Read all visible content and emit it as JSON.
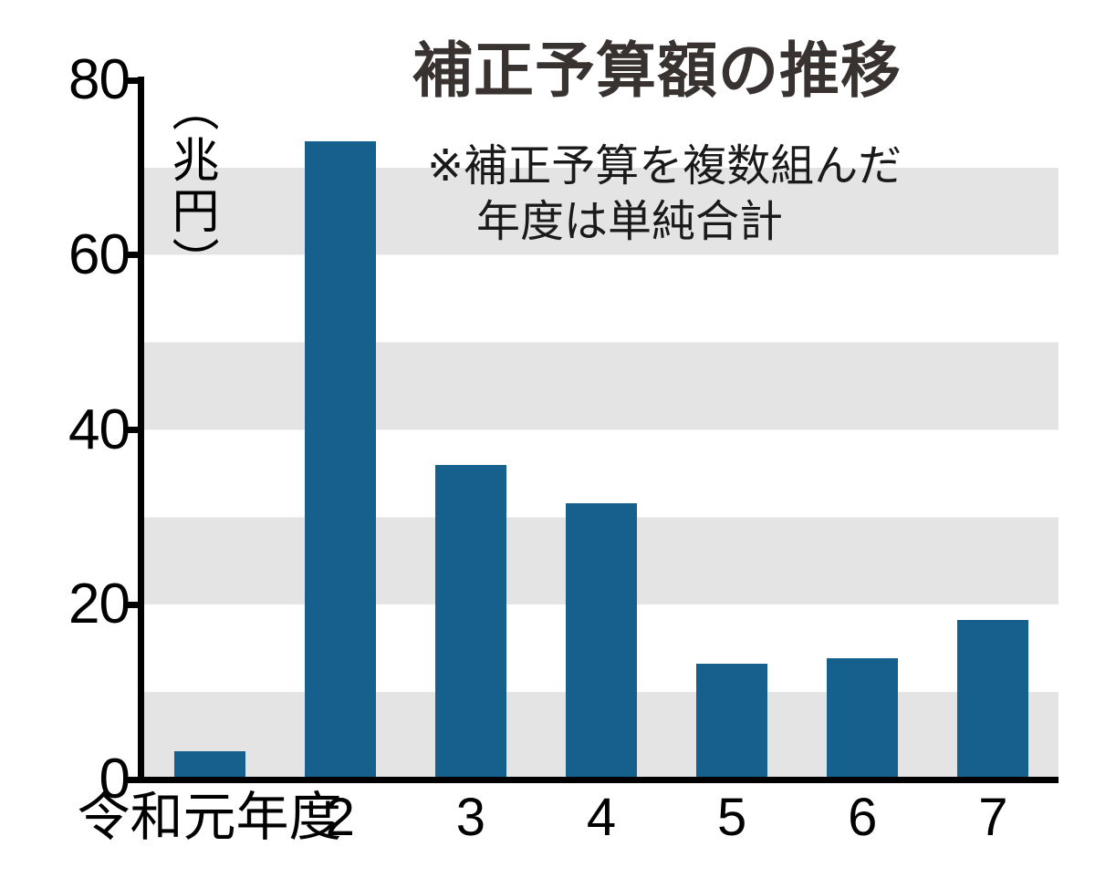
{
  "chart_data": {
    "type": "bar",
    "title": "補正予算額の推移",
    "note_line1": "※補正予算を複数組んだ",
    "note_line2": "年度は単純合計",
    "unit_label": "（兆円）",
    "xlabel": "",
    "ylabel": "兆円",
    "categories": [
      "令和元年度",
      "2",
      "3",
      "4",
      "5",
      "6",
      "7"
    ],
    "values": [
      3.2,
      73.0,
      36.0,
      31.6,
      13.2,
      13.9,
      18.3
    ],
    "ylim": [
      0,
      80
    ],
    "yticks": [
      0,
      20,
      40,
      60,
      80
    ],
    "band_step": 10,
    "grid": "horizontal-bands",
    "legend_position": "none",
    "bar_color": "#16608e",
    "band_color": "#e4e4e4",
    "axis_color": "#000000"
  }
}
